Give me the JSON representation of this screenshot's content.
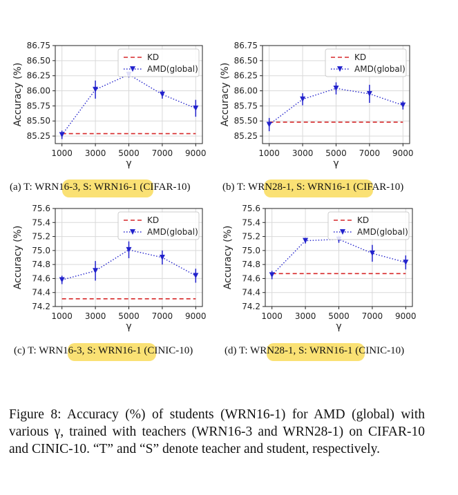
{
  "chart_data": [
    {
      "type": "line",
      "subcaption": "(a) T: WRN16-3, S: WRN16-1 (CIFAR-10)",
      "xlabel": "γ",
      "ylabel": "Accuracy (%)",
      "x": [
        1000,
        3000,
        5000,
        7000,
        9000
      ],
      "x_ticks": [
        "1000",
        "3000",
        "5000",
        "7000",
        "9000"
      ],
      "ylim": [
        85.125,
        86.75
      ],
      "y_ticks": [
        "85.25",
        "85.50",
        "85.75",
        "86.00",
        "86.25",
        "86.50",
        "86.75"
      ],
      "y_tick_values": [
        85.25,
        85.5,
        85.75,
        86.0,
        86.25,
        86.5,
        86.75
      ],
      "grid": true,
      "legend": "top-right",
      "series": [
        {
          "name": "KD",
          "style": "dashed",
          "color": "#d62728",
          "values": [
            85.29,
            85.29,
            85.29,
            85.29,
            85.29
          ]
        },
        {
          "name": "AMD(global)",
          "style": "dotted-marker",
          "color": "#2222cc",
          "values": [
            85.27,
            86.02,
            86.27,
            85.94,
            85.71
          ],
          "errors": [
            0.07,
            0.15,
            0.05,
            0.07,
            0.14
          ]
        }
      ]
    },
    {
      "type": "line",
      "subcaption": "(b) T: WRN28-1, S: WRN16-1 (CIFAR-10)",
      "xlabel": "γ",
      "ylabel": "Accuracy (%)",
      "x": [
        1000,
        3000,
        5000,
        7000,
        9000
      ],
      "x_ticks": [
        "1000",
        "3000",
        "5000",
        "7000",
        "9000"
      ],
      "ylim": [
        85.125,
        86.75
      ],
      "y_ticks": [
        "85.25",
        "85.50",
        "85.75",
        "86.00",
        "86.25",
        "86.50",
        "86.75"
      ],
      "y_tick_values": [
        85.25,
        85.5,
        85.75,
        86.0,
        86.25,
        86.5,
        86.75
      ],
      "grid": true,
      "legend": "top-right",
      "series": [
        {
          "name": "KD",
          "style": "dashed",
          "color": "#d62728",
          "values": [
            85.48,
            85.48,
            85.48,
            85.48,
            85.48
          ]
        },
        {
          "name": "AMD(global)",
          "style": "dotted-marker",
          "color": "#2222cc",
          "values": [
            85.44,
            85.86,
            86.04,
            85.95,
            85.76
          ],
          "errors": [
            0.11,
            0.1,
            0.1,
            0.15,
            0.07
          ]
        }
      ]
    },
    {
      "type": "line",
      "subcaption": "(c) T: WRN16-3, S: WRN16-1 (CINIC-10)",
      "xlabel": "γ",
      "ylabel": "Accuracy (%)",
      "x": [
        1000,
        3000,
        5000,
        7000,
        9000
      ],
      "x_ticks": [
        "1000",
        "3000",
        "5000",
        "7000",
        "9000"
      ],
      "ylim": [
        74.2,
        75.6
      ],
      "y_ticks": [
        "74.2",
        "74.4",
        "74.6",
        "74.8",
        "75.0",
        "75.2",
        "75.4",
        "75.6"
      ],
      "y_tick_values": [
        74.2,
        74.4,
        74.6,
        74.8,
        75.0,
        75.2,
        75.4,
        75.6
      ],
      "grid": true,
      "legend": "top-right",
      "series": [
        {
          "name": "KD",
          "style": "dashed",
          "color": "#d62728",
          "values": [
            74.31,
            74.31,
            74.31,
            74.31,
            74.31
          ]
        },
        {
          "name": "AMD(global)",
          "style": "dotted-marker",
          "color": "#2222cc",
          "values": [
            74.58,
            74.71,
            75.01,
            74.9,
            74.64
          ],
          "errors": [
            0.06,
            0.14,
            0.12,
            0.1,
            0.1
          ]
        }
      ]
    },
    {
      "type": "line",
      "subcaption": "(d) T: WRN28-1, S: WRN16-1 (CINIC-10)",
      "xlabel": "γ",
      "ylabel": "Accuracy (%)",
      "x": [
        1000,
        3000,
        5000,
        7000,
        9000
      ],
      "x_ticks": [
        "1000",
        "3000",
        "5000",
        "7000",
        "9000"
      ],
      "ylim": [
        74.2,
        75.6
      ],
      "y_ticks": [
        "74.2",
        "74.4",
        "74.6",
        "74.8",
        "75.0",
        "75.2",
        "75.4",
        "75.6"
      ],
      "y_tick_values": [
        74.2,
        74.4,
        74.6,
        74.8,
        75.0,
        75.2,
        75.4,
        75.6
      ],
      "grid": true,
      "legend": "top-right",
      "series": [
        {
          "name": "KD",
          "style": "dashed",
          "color": "#d62728",
          "values": [
            74.67,
            74.67,
            74.67,
            74.67,
            74.67
          ]
        },
        {
          "name": "AMD(global)",
          "style": "dotted-marker",
          "color": "#2222cc",
          "values": [
            74.65,
            75.14,
            75.16,
            74.96,
            74.83
          ],
          "errors": [
            0.06,
            0.04,
            0.05,
            0.12,
            0.1
          ]
        }
      ]
    }
  ],
  "figure_caption": "Figure 8: Accuracy (%) of students (WRN16-1) for AMD (global) with various γ, trained with teachers (WRN16-3 and WRN28-1) on CIFAR-10 and CINIC-10. “T” and “S” denote teacher and student, respectively.",
  "colors": {
    "highlight": "#f9dc5c",
    "kd": "#d62728",
    "amd": "#2222cc",
    "grid": "#d9d9d9"
  }
}
